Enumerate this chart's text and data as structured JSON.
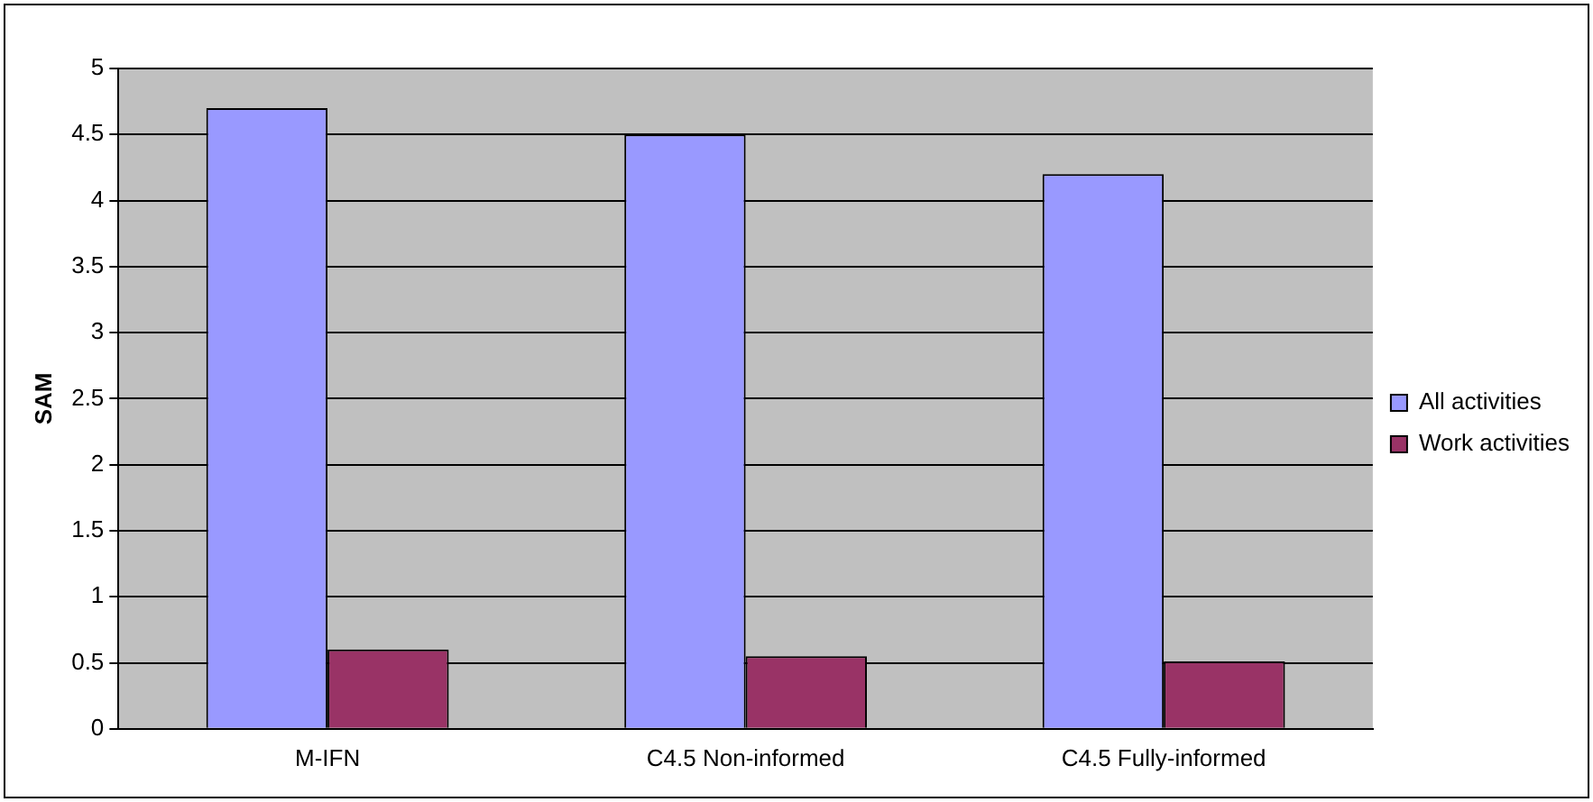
{
  "chart_data": {
    "type": "bar",
    "ylabel": "SAM",
    "categories": [
      "M-IFN",
      "C4.5 Non-informed",
      "C4.5 Fully-informed"
    ],
    "series": [
      {
        "name": "All activities",
        "color": "#9999ff",
        "values": [
          4.7,
          4.5,
          4.2
        ]
      },
      {
        "name": "Work activities",
        "color": "#993366",
        "values": [
          0.6,
          0.55,
          0.51
        ]
      }
    ],
    "ylim": [
      0,
      5
    ],
    "yticks": [
      0,
      0.5,
      1,
      1.5,
      2,
      2.5,
      3,
      3.5,
      4,
      4.5,
      5
    ],
    "grid": "y",
    "legend": "right"
  }
}
